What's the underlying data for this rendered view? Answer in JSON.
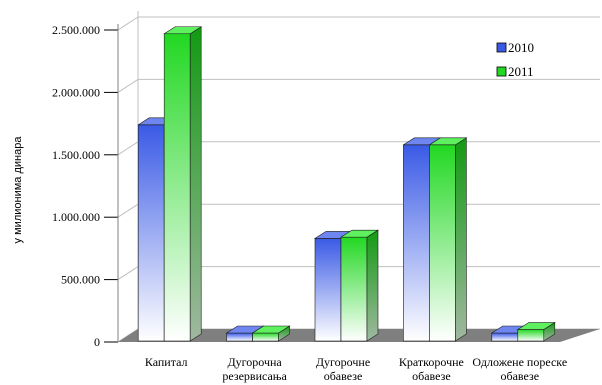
{
  "chart_data": {
    "type": "bar",
    "title": "",
    "xlabel": "",
    "ylabel": "у милионима динара",
    "categories": [
      [
        "Капитал"
      ],
      [
        "Дугорочна",
        "резервисања"
      ],
      [
        "Дугорочне",
        "обавезе"
      ],
      [
        "Краткорочне",
        "обавезе"
      ],
      [
        "Одложене пореске",
        "обавезе"
      ]
    ],
    "series": [
      {
        "name": "2010",
        "values": [
          1740000,
          40000,
          830000,
          1580000,
          30000
        ]
      },
      {
        "name": "2011",
        "values": [
          2470000,
          40000,
          840000,
          1580000,
          100000
        ]
      }
    ],
    "ylim": [
      0,
      2500000
    ],
    "yticks": [
      0,
      500000,
      1000000,
      1500000,
      2000000,
      2500000
    ],
    "ytick_labels": [
      "0",
      "500.000",
      "1.000.000",
      "1.500.000",
      "2.000.000",
      "2.500.000"
    ],
    "grid": true,
    "legend_position": "top-right",
    "colors": {
      "2010": "#3a5ae6",
      "2011": "#22d822",
      "floor": "#7f7f7f",
      "gridline": "#bfbfbf"
    }
  }
}
